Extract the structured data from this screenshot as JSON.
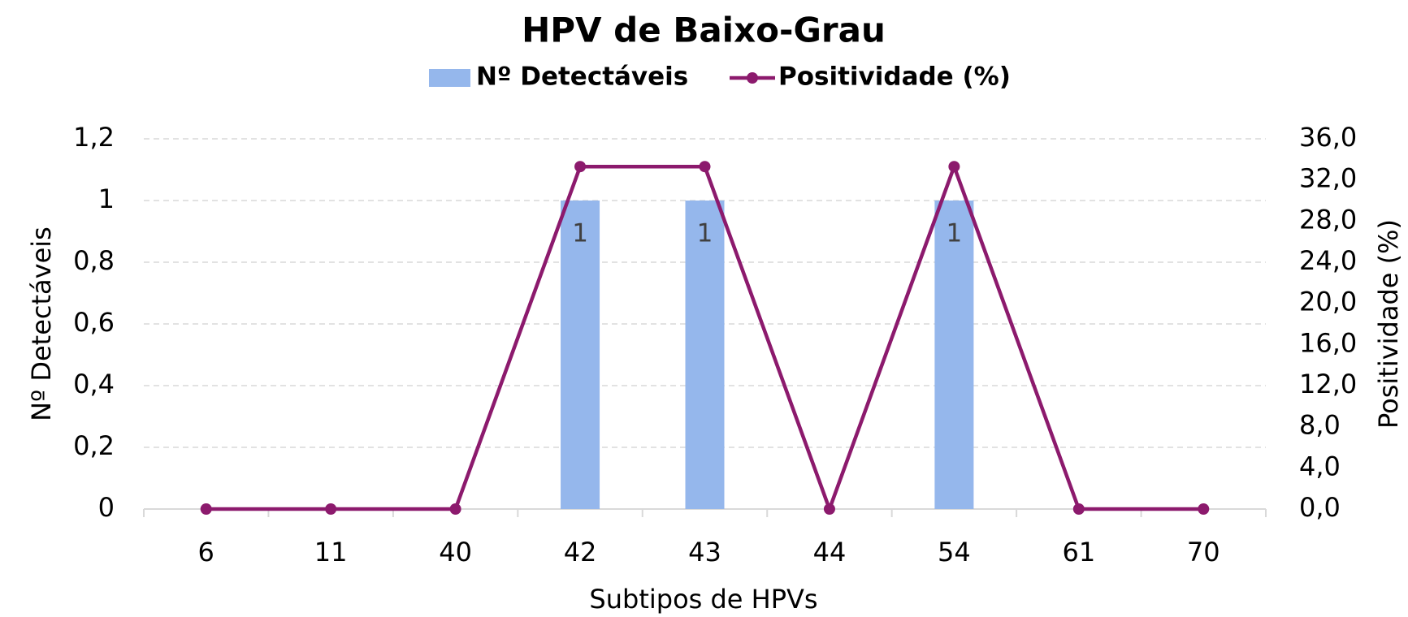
{
  "chart_data": {
    "type": "bar-line",
    "title": "HPV de Baixo-Grau",
    "x_label": "Subtipos de HPVs",
    "y_label": "Nº Detectáveis",
    "y2_label": "Positividade (%)",
    "categories": [
      "6",
      "11",
      "40",
      "42",
      "43",
      "44",
      "54",
      "61",
      "70"
    ],
    "series": [
      {
        "name": "Nº Detectáveis",
        "type": "bar",
        "color": "#95b7ec",
        "values": [
          0,
          0,
          0,
          1,
          1,
          0,
          1,
          0,
          0
        ]
      },
      {
        "name": "Positividade (%)",
        "type": "line",
        "axis": "y2",
        "color": "#8c1a6d",
        "values": [
          0,
          0,
          0,
          33.3,
          33.3,
          0,
          33.3,
          0,
          0
        ]
      }
    ],
    "ylim": [
      0,
      1.2
    ],
    "yticks": [
      0,
      {
        "value": 0.2,
        "label": "0,2"
      },
      {
        "value": 0.4,
        "label": "0,4"
      },
      {
        "value": 0.6,
        "label": "0,6"
      },
      {
        "value": 0.8,
        "label": "0,8"
      },
      1,
      {
        "value": 1.2,
        "label": "1,2"
      }
    ],
    "y2lim": [
      0,
      36
    ],
    "y2ticks": [
      {
        "value": 0,
        "label": "0,0"
      },
      {
        "value": 4,
        "label": "4,0"
      },
      {
        "value": 8,
        "label": "8,0"
      },
      {
        "value": 12,
        "label": "12,0"
      },
      {
        "value": 16,
        "label": "16,0"
      },
      {
        "value": 20,
        "label": "20,0"
      },
      {
        "value": 24,
        "label": "24,0"
      },
      {
        "value": 28,
        "label": "28,0"
      },
      {
        "value": 32,
        "label": "32,0"
      },
      {
        "value": 36,
        "label": "36,0"
      }
    ],
    "grid": true,
    "legend": "top"
  }
}
